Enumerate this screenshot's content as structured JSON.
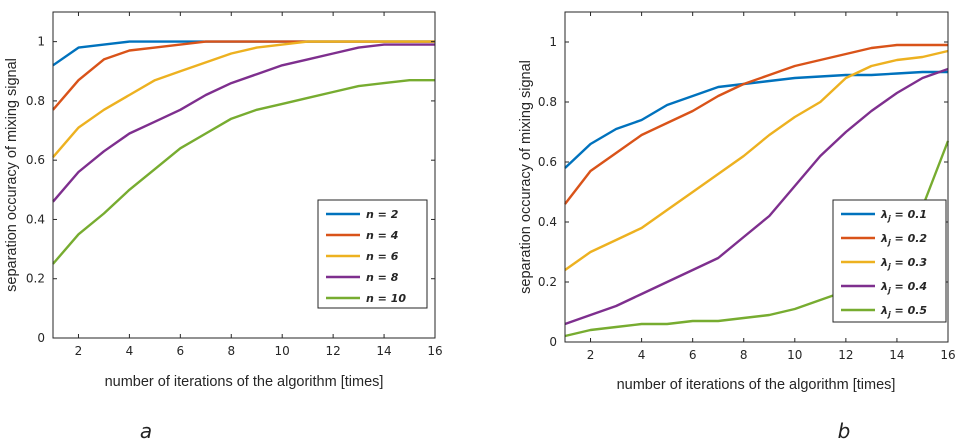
{
  "chart_data": [
    {
      "type": "line",
      "xlabel": "number of iterations of the algorithm [times]",
      "ylabel": "separation occuracy of mixing signal",
      "xlim": [
        1,
        16
      ],
      "ylim": [
        0,
        1.1
      ],
      "xticks": [
        "2",
        "4",
        "6",
        "8",
        "10",
        "12",
        "14",
        "16"
      ],
      "yticks": [
        "0",
        "0.2",
        "0.4",
        "0.6",
        "0.8",
        "1"
      ],
      "legend_position": "bottom-right",
      "sublabel": "a",
      "x": [
        1,
        2,
        3,
        4,
        5,
        6,
        7,
        8,
        9,
        10,
        11,
        12,
        13,
        14,
        15,
        16
      ],
      "series": [
        {
          "name": "n = 2",
          "color": "#0072BD",
          "values": [
            0.92,
            0.98,
            0.99,
            1.0,
            1.0,
            1.0,
            1.0,
            1.0,
            1.0,
            1.0,
            1.0,
            1.0,
            1.0,
            1.0,
            1.0,
            1.0
          ]
        },
        {
          "name": "n = 4",
          "color": "#D95319",
          "values": [
            0.77,
            0.87,
            0.94,
            0.97,
            0.98,
            0.99,
            1.0,
            1.0,
            1.0,
            1.0,
            1.0,
            1.0,
            1.0,
            1.0,
            1.0,
            1.0
          ]
        },
        {
          "name": "n = 6",
          "color": "#EDB120",
          "values": [
            0.61,
            0.71,
            0.77,
            0.82,
            0.87,
            0.9,
            0.93,
            0.96,
            0.98,
            0.99,
            1.0,
            1.0,
            1.0,
            1.0,
            1.0,
            1.0
          ]
        },
        {
          "name": "n = 8",
          "color": "#7E2F8E",
          "values": [
            0.46,
            0.56,
            0.63,
            0.69,
            0.73,
            0.77,
            0.82,
            0.86,
            0.89,
            0.92,
            0.94,
            0.96,
            0.98,
            0.99,
            0.99,
            0.99
          ]
        },
        {
          "name": "n = 10",
          "color": "#77AC30",
          "values": [
            0.25,
            0.35,
            0.42,
            0.5,
            0.57,
            0.64,
            0.69,
            0.74,
            0.77,
            0.79,
            0.81,
            0.83,
            0.85,
            0.86,
            0.87,
            0.87
          ]
        }
      ]
    },
    {
      "type": "line",
      "xlabel": "number of iterations of the algorithm [times]",
      "ylabel": "separation occuracy of mixing signal",
      "xlim": [
        1,
        16
      ],
      "ylim": [
        0,
        1.1
      ],
      "xticks": [
        "2",
        "4",
        "6",
        "8",
        "10",
        "12",
        "14",
        "16"
      ],
      "yticks": [
        "0",
        "0.2",
        "0.4",
        "0.6",
        "0.8",
        "1"
      ],
      "legend_position": "bottom-right",
      "sublabel": "b",
      "x": [
        1,
        2,
        3,
        4,
        5,
        6,
        7,
        8,
        9,
        10,
        11,
        12,
        13,
        14,
        15,
        16
      ],
      "series": [
        {
          "name": "λj = 0.1",
          "color": "#0072BD",
          "values": [
            0.58,
            0.66,
            0.71,
            0.74,
            0.79,
            0.82,
            0.85,
            0.86,
            0.87,
            0.88,
            0.885,
            0.89,
            0.89,
            0.895,
            0.9,
            0.9
          ]
        },
        {
          "name": "λj = 0.2",
          "color": "#D95319",
          "values": [
            0.46,
            0.57,
            0.63,
            0.69,
            0.73,
            0.77,
            0.82,
            0.86,
            0.89,
            0.92,
            0.94,
            0.96,
            0.98,
            0.99,
            0.99,
            0.99
          ]
        },
        {
          "name": "λj = 0.3",
          "color": "#EDB120",
          "values": [
            0.24,
            0.3,
            0.34,
            0.38,
            0.44,
            0.5,
            0.56,
            0.62,
            0.69,
            0.75,
            0.8,
            0.88,
            0.92,
            0.94,
            0.95,
            0.97
          ]
        },
        {
          "name": "λj = 0.4",
          "color": "#7E2F8E",
          "values": [
            0.06,
            0.09,
            0.12,
            0.16,
            0.2,
            0.24,
            0.28,
            0.35,
            0.42,
            0.52,
            0.62,
            0.7,
            0.77,
            0.83,
            0.88,
            0.91
          ]
        },
        {
          "name": "λj = 0.5",
          "color": "#77AC30",
          "values": [
            0.02,
            0.04,
            0.05,
            0.06,
            0.06,
            0.07,
            0.07,
            0.08,
            0.09,
            0.11,
            0.14,
            0.17,
            0.22,
            0.31,
            0.45,
            0.67
          ]
        }
      ]
    }
  ]
}
